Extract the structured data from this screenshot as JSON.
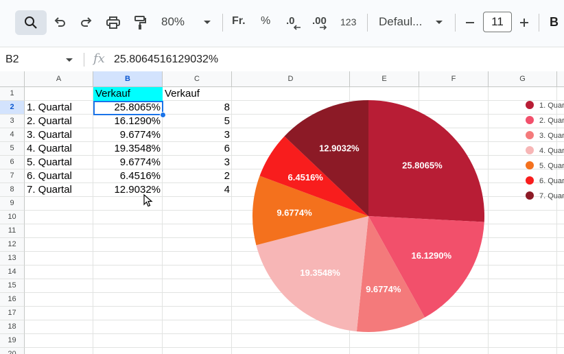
{
  "toolbar": {
    "zoom": "80%",
    "currency": "Fr.",
    "percent": "%",
    "decrease_decimals": ".0",
    "increase_decimals": ".00",
    "number_format": "123",
    "font": "Defaul...",
    "font_size": "11",
    "bold": "B",
    "icons": [
      "search-icon",
      "undo-icon",
      "redo-icon",
      "print-icon",
      "paint-format-icon",
      "chevron-down-icon",
      "minus-icon",
      "plus-icon"
    ]
  },
  "formula_bar": {
    "cell_ref": "B2",
    "fx": "fx",
    "value": "25.8064516129032%"
  },
  "grid": {
    "columns": [
      "A",
      "B",
      "C",
      "D",
      "E",
      "F",
      "G"
    ],
    "selected_column": "B",
    "rows": [
      "1",
      "2",
      "3",
      "4",
      "5",
      "6",
      "7",
      "8",
      "9",
      "10",
      "11",
      "12",
      "13",
      "14",
      "15",
      "16",
      "17",
      "18",
      "19",
      "20"
    ],
    "selected_row": "2",
    "header_b": "Verkauf",
    "header_c": "Verkauf",
    "data": [
      {
        "a": "1. Quartal",
        "b": "25.8065%",
        "c": "8"
      },
      {
        "a": "2. Quartal",
        "b": "16.1290%",
        "c": "5"
      },
      {
        "a": "3. Quartal",
        "b": "9.6774%",
        "c": "3"
      },
      {
        "a": "4. Quartal",
        "b": "19.3548%",
        "c": "6"
      },
      {
        "a": "5. Quartal",
        "b": "9.6774%",
        "c": "3"
      },
      {
        "a": "6. Quartal",
        "b": "6.4516%",
        "c": "2"
      },
      {
        "a": "7. Quartal",
        "b": "12.9032%",
        "c": "4"
      }
    ],
    "colors": {
      "header_fill": "#00ffff",
      "selection": "#1a73e8"
    }
  },
  "chart_data": {
    "type": "pie",
    "categories": [
      "1. Quartal",
      "2. Quartal",
      "3. Quartal",
      "4. Quartal",
      "5. Quartal",
      "6. Quartal",
      "7. Quartal"
    ],
    "values": [
      8,
      5,
      3,
      6,
      3,
      2,
      4
    ],
    "labels": [
      "25.8065%",
      "16.1290%",
      "9.6774%",
      "19.3548%",
      "9.6774%",
      "6.4516%",
      "12.9032%"
    ],
    "legend": [
      "1. Quar",
      "2. Quar",
      "3. Quar",
      "4. Quar",
      "5. Quar",
      "6. Quar",
      "7. Quar"
    ],
    "colors": [
      "#b81d35",
      "#f2506b",
      "#f47a7b",
      "#f7b6b6",
      "#f4711d",
      "#f81d1d",
      "#8c1a26"
    ],
    "legend_position": "right",
    "title": ""
  }
}
